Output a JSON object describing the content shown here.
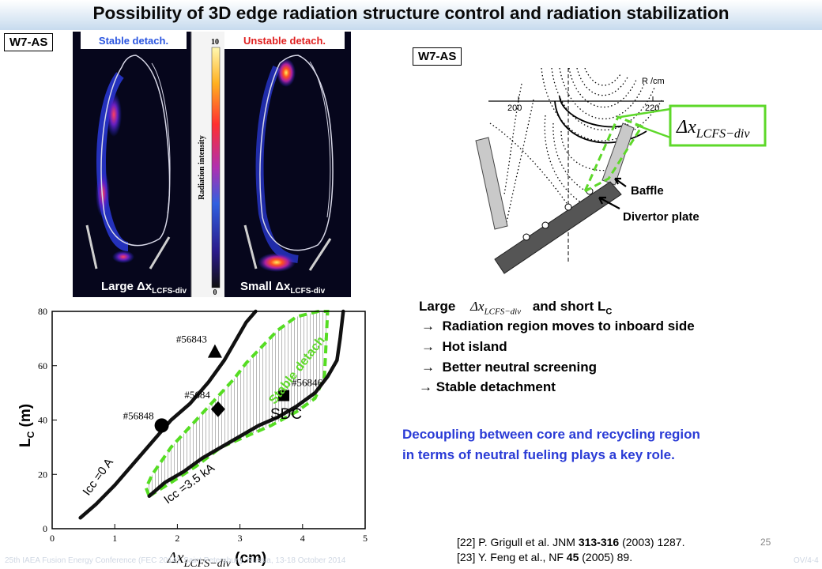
{
  "slide": {
    "title": "Possibility of 3D edge radiation structure control and radiation stabilization",
    "page_number": "25",
    "footer_conference": "25th IAEA Fusion Energy Conference (FEC 2014), Saint Petersburg, Russia, 13-18 October 2014",
    "footer_code": "OV/4-4"
  },
  "left_image": {
    "tag": "W7-AS",
    "panel_left_title": "Stable detach.",
    "panel_right_title": "Unstable detach.",
    "colorbar_label": "Radiation intensity",
    "colorbar_top": "10",
    "colorbar_bottom": "0",
    "caption_left_prefix": "Large ",
    "caption_right_prefix": "Small ",
    "caption_delta": "Δx",
    "caption_sub": "LCFS-div",
    "colors": [
      "#06061c",
      "#1a2ad0",
      "#7a10b0",
      "#e03070",
      "#ff4020",
      "#ff9a20",
      "#fff060"
    ]
  },
  "right_figure": {
    "tag": "W7-AS",
    "axis_label": "R /cm",
    "tick_200": "200",
    "tick_220": "220",
    "formula_delta": "Δx",
    "formula_sub": "LCFS−div",
    "label_baffle": "Baffle",
    "label_divertor": "Divertor plate"
  },
  "bullets": {
    "line1_a": "Large",
    "line1_b": "and short L",
    "line1_sub": "C",
    "formula_delta": "Δx",
    "formula_sub": "LCFS−div",
    "items": [
      "Radiation region moves to inboard side",
      "Hot island",
      "Better neutral screening",
      "Stable detachment"
    ],
    "arrow": "→",
    "conclusion_1": "Decoupling between core and recycling region",
    "conclusion_2": "in terms of neutral fueling plays a key role.",
    "conclusion_color": "#2a3bd6"
  },
  "references": {
    "ref1_a": "[22] P. Grigull et al. JNM ",
    "ref1_b": "313-316",
    "ref1_c": " (2003) 1287.",
    "ref2_a": "[23] Y. Feng et al., NF ",
    "ref2_b": "45",
    "ref2_c": " (2005) 89."
  },
  "chart_data": {
    "type": "line",
    "ylabel": "L",
    "ylabel_sub": "C",
    "ylabel_unit": " (m)",
    "xlabel_delta": "Δx",
    "xlabel_sub": "LCFS−div",
    "xlabel_unit": " (cm)",
    "xlim": [
      0,
      5
    ],
    "ylim": [
      0,
      80
    ],
    "xticks": [
      0,
      1,
      2,
      3,
      4,
      5
    ],
    "yticks": [
      0,
      20,
      40,
      60,
      80
    ],
    "series": [
      {
        "name": "Icc =0 A",
        "x": [
          0.45,
          0.7,
          1.0,
          1.3,
          1.6,
          1.9,
          2.2,
          2.5,
          2.75,
          2.95,
          3.1,
          3.25
        ],
        "y": [
          4,
          9,
          16,
          24,
          32,
          40,
          46,
          54,
          62,
          70,
          76,
          80
        ]
      },
      {
        "name": "Icc =3.5 kA",
        "x": [
          1.55,
          1.8,
          2.1,
          2.4,
          2.7,
          3.0,
          3.3,
          3.6,
          3.9,
          4.2,
          4.4,
          4.55,
          4.6,
          4.65
        ],
        "y": [
          12,
          17,
          21,
          26,
          30,
          34,
          38,
          41,
          45,
          50,
          56,
          62,
          70,
          80
        ]
      }
    ],
    "points": [
      {
        "label": "#56848",
        "x": 1.75,
        "y": 38,
        "marker": "circle"
      },
      {
        "label": "#56843",
        "x": 2.6,
        "y": 65,
        "marker": "triangle"
      },
      {
        "label": "#5684",
        "x": 2.65,
        "y": 44,
        "marker": "diamond"
      },
      {
        "label": "#56846",
        "x": 3.7,
        "y": 49,
        "marker": "square"
      }
    ],
    "region_label": "Stable detach.",
    "region_x": [
      1.55,
      1.9,
      2.3,
      2.7,
      3.1,
      3.5,
      3.9,
      4.2,
      4.35,
      4.4,
      4.25,
      3.9,
      3.6,
      3.35,
      3.1,
      2.9,
      2.7,
      2.5,
      2.3,
      2.1,
      1.9,
      1.75,
      1.6,
      1.5
    ],
    "region_y": [
      12,
      17,
      23,
      30,
      34,
      38,
      43,
      48,
      56,
      80,
      80,
      78,
      73,
      67,
      61,
      55,
      50,
      45,
      40,
      35,
      30,
      25,
      20,
      15
    ],
    "sdc_label": "SDC",
    "colors": {
      "curves": "#111111",
      "region": "#55dd22"
    }
  }
}
